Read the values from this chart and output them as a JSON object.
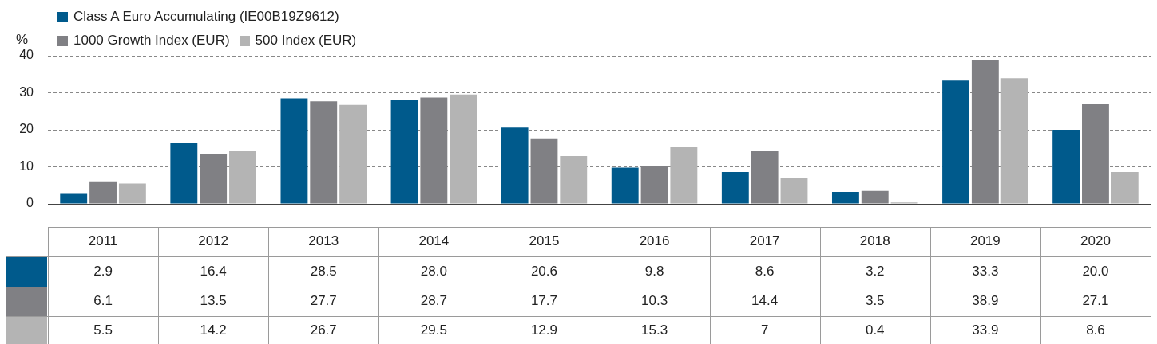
{
  "chart_data": {
    "type": "bar",
    "ylabel": "%",
    "categories": [
      "2011",
      "2012",
      "2013",
      "2014",
      "2015",
      "2016",
      "2017",
      "2018",
      "2019",
      "2020"
    ],
    "series": [
      {
        "name": "Class A Euro Accumulating (IE00B19Z9612)",
        "color": "#005a8c",
        "values": [
          2.9,
          16.4,
          28.5,
          28.0,
          20.6,
          9.8,
          8.6,
          3.2,
          33.3,
          20.0
        ],
        "value_labels": [
          "2.9",
          "16.4",
          "28.5",
          "28.0",
          "20.6",
          "9.8",
          "8.6",
          "3.2",
          "33.3",
          "20.0"
        ]
      },
      {
        "name": "1000 Growth Index (EUR)",
        "color": "#808084",
        "values": [
          6.1,
          13.5,
          27.7,
          28.7,
          17.7,
          10.3,
          14.4,
          3.5,
          38.9,
          27.1
        ],
        "value_labels": [
          "6.1",
          "13.5",
          "27.7",
          "28.7",
          "17.7",
          "10.3",
          "14.4",
          "3.5",
          "38.9",
          "27.1"
        ]
      },
      {
        "name": "500 Index (EUR)",
        "color": "#b4b4b4",
        "values": [
          5.5,
          14.2,
          26.7,
          29.5,
          12.9,
          15.3,
          7,
          0.4,
          33.9,
          8.6
        ],
        "value_labels": [
          "5.5",
          "14.2",
          "26.7",
          "29.5",
          "12.9",
          "15.3",
          "7",
          "0.4",
          "33.9",
          "8.6"
        ]
      }
    ],
    "ylim": [
      0,
      40
    ],
    "yticks": [
      0,
      10,
      20,
      30,
      40
    ],
    "grid": "y",
    "legend": "top left"
  }
}
